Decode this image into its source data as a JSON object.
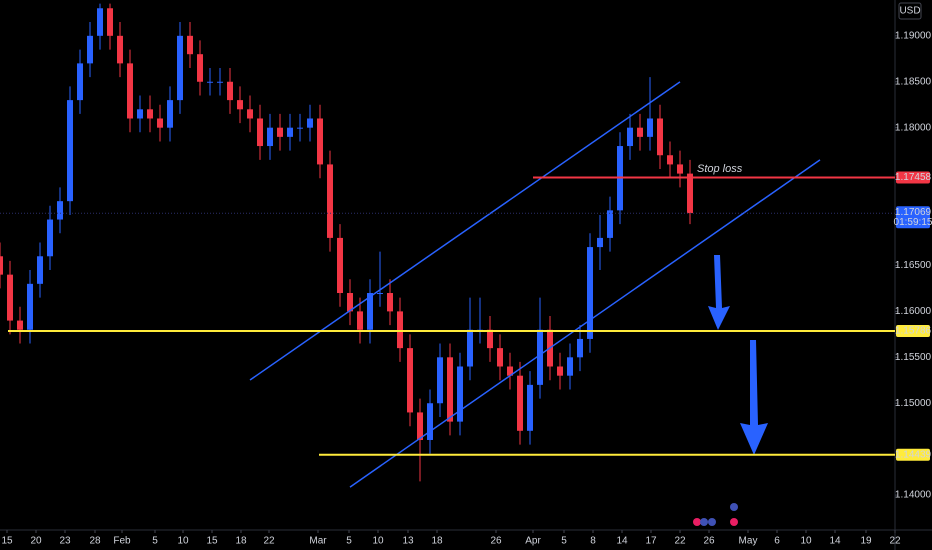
{
  "chart_data": {
    "type": "candlestick",
    "currency": "USD",
    "annotation": "Stop loss",
    "xlim": [
      0,
      89.5
    ],
    "ylim": [
      1.1362,
      1.1939
    ],
    "x": [
      0,
      1,
      2,
      3,
      4,
      5,
      6,
      7,
      8,
      9,
      10,
      11,
      12,
      13,
      14,
      15,
      16,
      17,
      18,
      19,
      20,
      21,
      22,
      23,
      24,
      25,
      26,
      27,
      28,
      29,
      30,
      31,
      32,
      33,
      34,
      35,
      36,
      37,
      38,
      39,
      40,
      41,
      42,
      43,
      44,
      45,
      46,
      47,
      48,
      49,
      50,
      51,
      52,
      53,
      54,
      55,
      56,
      57,
      58,
      59,
      60,
      61,
      62,
      63,
      64,
      65,
      66,
      67,
      68,
      69
    ],
    "open": [
      1.166,
      1.164,
      1.159,
      1.158,
      1.163,
      1.166,
      1.17,
      1.172,
      1.183,
      1.187,
      1.19,
      1.193,
      1.19,
      1.187,
      1.181,
      1.182,
      1.181,
      1.18,
      1.183,
      1.19,
      1.188,
      1.185,
      1.185,
      1.185,
      1.183,
      1.182,
      1.181,
      1.178,
      1.18,
      1.179,
      1.18,
      1.18,
      1.181,
      1.176,
      1.168,
      1.162,
      1.16,
      1.158,
      1.162,
      1.162,
      1.16,
      1.156,
      1.149,
      1.146,
      1.15,
      1.155,
      1.148,
      1.154,
      1.158,
      1.158,
      1.156,
      1.154,
      1.153,
      1.147,
      1.152,
      1.158,
      1.154,
      1.153,
      1.155,
      1.157,
      1.167,
      1.168,
      1.171,
      1.178,
      1.18,
      1.179,
      1.181,
      1.177,
      1.176,
      1.175
    ],
    "high": [
      1.1675,
      1.1655,
      1.1605,
      1.1645,
      1.1675,
      1.1715,
      1.1735,
      1.1845,
      1.1885,
      1.1915,
      1.1935,
      1.1935,
      1.1915,
      1.1885,
      1.1835,
      1.1835,
      1.1825,
      1.1845,
      1.1915,
      1.1915,
      1.1895,
      1.1865,
      1.1865,
      1.1865,
      1.1845,
      1.1835,
      1.1825,
      1.1815,
      1.1815,
      1.1815,
      1.1815,
      1.1825,
      1.1825,
      1.1775,
      1.1695,
      1.1635,
      1.1615,
      1.1635,
      1.1665,
      1.1635,
      1.1615,
      1.1575,
      1.1505,
      1.1515,
      1.1565,
      1.1565,
      1.1555,
      1.1615,
      1.1615,
      1.1595,
      1.1575,
      1.1555,
      1.1545,
      1.1535,
      1.1615,
      1.1595,
      1.1555,
      1.1565,
      1.1585,
      1.1685,
      1.1705,
      1.1725,
      1.1795,
      1.1815,
      1.1815,
      1.1855,
      1.1825,
      1.1785,
      1.1775,
      1.1765
    ],
    "low": [
      1.1625,
      1.1575,
      1.1565,
      1.1565,
      1.1615,
      1.1645,
      1.1685,
      1.1705,
      1.1815,
      1.1855,
      1.1885,
      1.1885,
      1.1855,
      1.1795,
      1.1795,
      1.1795,
      1.1785,
      1.1785,
      1.1815,
      1.1865,
      1.1835,
      1.1835,
      1.1835,
      1.1815,
      1.1805,
      1.1795,
      1.1765,
      1.1765,
      1.1775,
      1.1775,
      1.1785,
      1.1785,
      1.1745,
      1.1665,
      1.1605,
      1.1585,
      1.1565,
      1.1565,
      1.1605,
      1.1585,
      1.1545,
      1.1475,
      1.1415,
      1.1445,
      1.1485,
      1.1465,
      1.1465,
      1.1525,
      1.1565,
      1.1545,
      1.1525,
      1.1515,
      1.1455,
      1.1455,
      1.1505,
      1.1525,
      1.1515,
      1.1515,
      1.1535,
      1.1555,
      1.1645,
      1.1665,
      1.1695,
      1.1765,
      1.1775,
      1.1775,
      1.1755,
      1.1745,
      1.1735,
      1.1695
    ],
    "close": [
      1.164,
      1.159,
      1.158,
      1.163,
      1.166,
      1.17,
      1.172,
      1.183,
      1.187,
      1.19,
      1.193,
      1.19,
      1.187,
      1.181,
      1.182,
      1.181,
      1.18,
      1.183,
      1.19,
      1.188,
      1.185,
      1.185,
      1.185,
      1.183,
      1.182,
      1.181,
      1.178,
      1.18,
      1.179,
      1.18,
      1.18,
      1.181,
      1.176,
      1.168,
      1.162,
      1.16,
      1.158,
      1.162,
      1.162,
      1.16,
      1.156,
      1.149,
      1.146,
      1.15,
      1.155,
      1.148,
      1.154,
      1.158,
      1.158,
      1.156,
      1.154,
      1.153,
      1.147,
      1.152,
      1.158,
      1.154,
      1.153,
      1.155,
      1.157,
      1.167,
      1.168,
      1.171,
      1.178,
      1.18,
      1.179,
      1.181,
      1.177,
      1.176,
      1.175,
      1.1707
    ],
    "up_color": "#2962ff",
    "down_color": "#f23645",
    "yticks": [
      {
        "value": 1.19,
        "label": "1.19000"
      },
      {
        "value": 1.185,
        "label": "1.18500"
      },
      {
        "value": 1.18,
        "label": "1.18000"
      },
      {
        "value": 1.165,
        "label": "1.16500"
      },
      {
        "value": 1.16,
        "label": "1.16000"
      },
      {
        "value": 1.155,
        "label": "1.15500"
      },
      {
        "value": 1.15,
        "label": "1.15000"
      },
      {
        "value": 1.14,
        "label": "1.14000"
      }
    ],
    "xticks": [
      {
        "value": 0.7,
        "label": "15"
      },
      {
        "value": 3.6,
        "label": "20"
      },
      {
        "value": 6.5,
        "label": "23"
      },
      {
        "value": 9.5,
        "label": "28"
      },
      {
        "value": 12.2,
        "label": "Feb"
      },
      {
        "value": 15.5,
        "label": "5"
      },
      {
        "value": 18.3,
        "label": "10"
      },
      {
        "value": 21.2,
        "label": "15"
      },
      {
        "value": 24.1,
        "label": "18"
      },
      {
        "value": 26.9,
        "label": "22"
      },
      {
        "value": 31.8,
        "label": "Mar"
      },
      {
        "value": 34.9,
        "label": "5"
      },
      {
        "value": 37.8,
        "label": "10"
      },
      {
        "value": 40.8,
        "label": "13"
      },
      {
        "value": 43.7,
        "label": "18"
      },
      {
        "value": 49.6,
        "label": "26"
      },
      {
        "value": 53.3,
        "label": "Apr"
      },
      {
        "value": 56.4,
        "label": "5"
      },
      {
        "value": 59.3,
        "label": "8"
      },
      {
        "value": 62.2,
        "label": "14"
      },
      {
        "value": 65.1,
        "label": "17"
      },
      {
        "value": 68,
        "label": "22"
      },
      {
        "value": 70.9,
        "label": "26"
      },
      {
        "value": 74.8,
        "label": "May"
      },
      {
        "value": 77.7,
        "label": "6"
      },
      {
        "value": 80.6,
        "label": "10"
      },
      {
        "value": 83.5,
        "label": "14"
      },
      {
        "value": 86.6,
        "label": "19"
      },
      {
        "value": 89.5,
        "label": "22"
      }
    ],
    "levels": [
      {
        "value": 1.17458,
        "label": "1.17458",
        "color": "#f23645",
        "x_from": 53.3
      },
      {
        "value": 1.15786,
        "label": "1.15786",
        "color": "#ffeb3b",
        "x_from": 0.8
      },
      {
        "value": 1.14439,
        "label": "1.14439",
        "color": "#ffeb3b",
        "x_from": 31.9
      }
    ],
    "last_price": {
      "value": 1.17069,
      "label": "1.17069",
      "countdown": "01:59:15",
      "color": "#2962ff"
    },
    "trendlines": [
      {
        "x": [
          25,
          68
        ],
        "y": [
          1.15253,
          1.18499
        ],
        "color": "#2962ff"
      },
      {
        "x": [
          35,
          82
        ],
        "y": [
          1.14087,
          1.17649
        ],
        "color": "#2962ff"
      }
    ]
  }
}
